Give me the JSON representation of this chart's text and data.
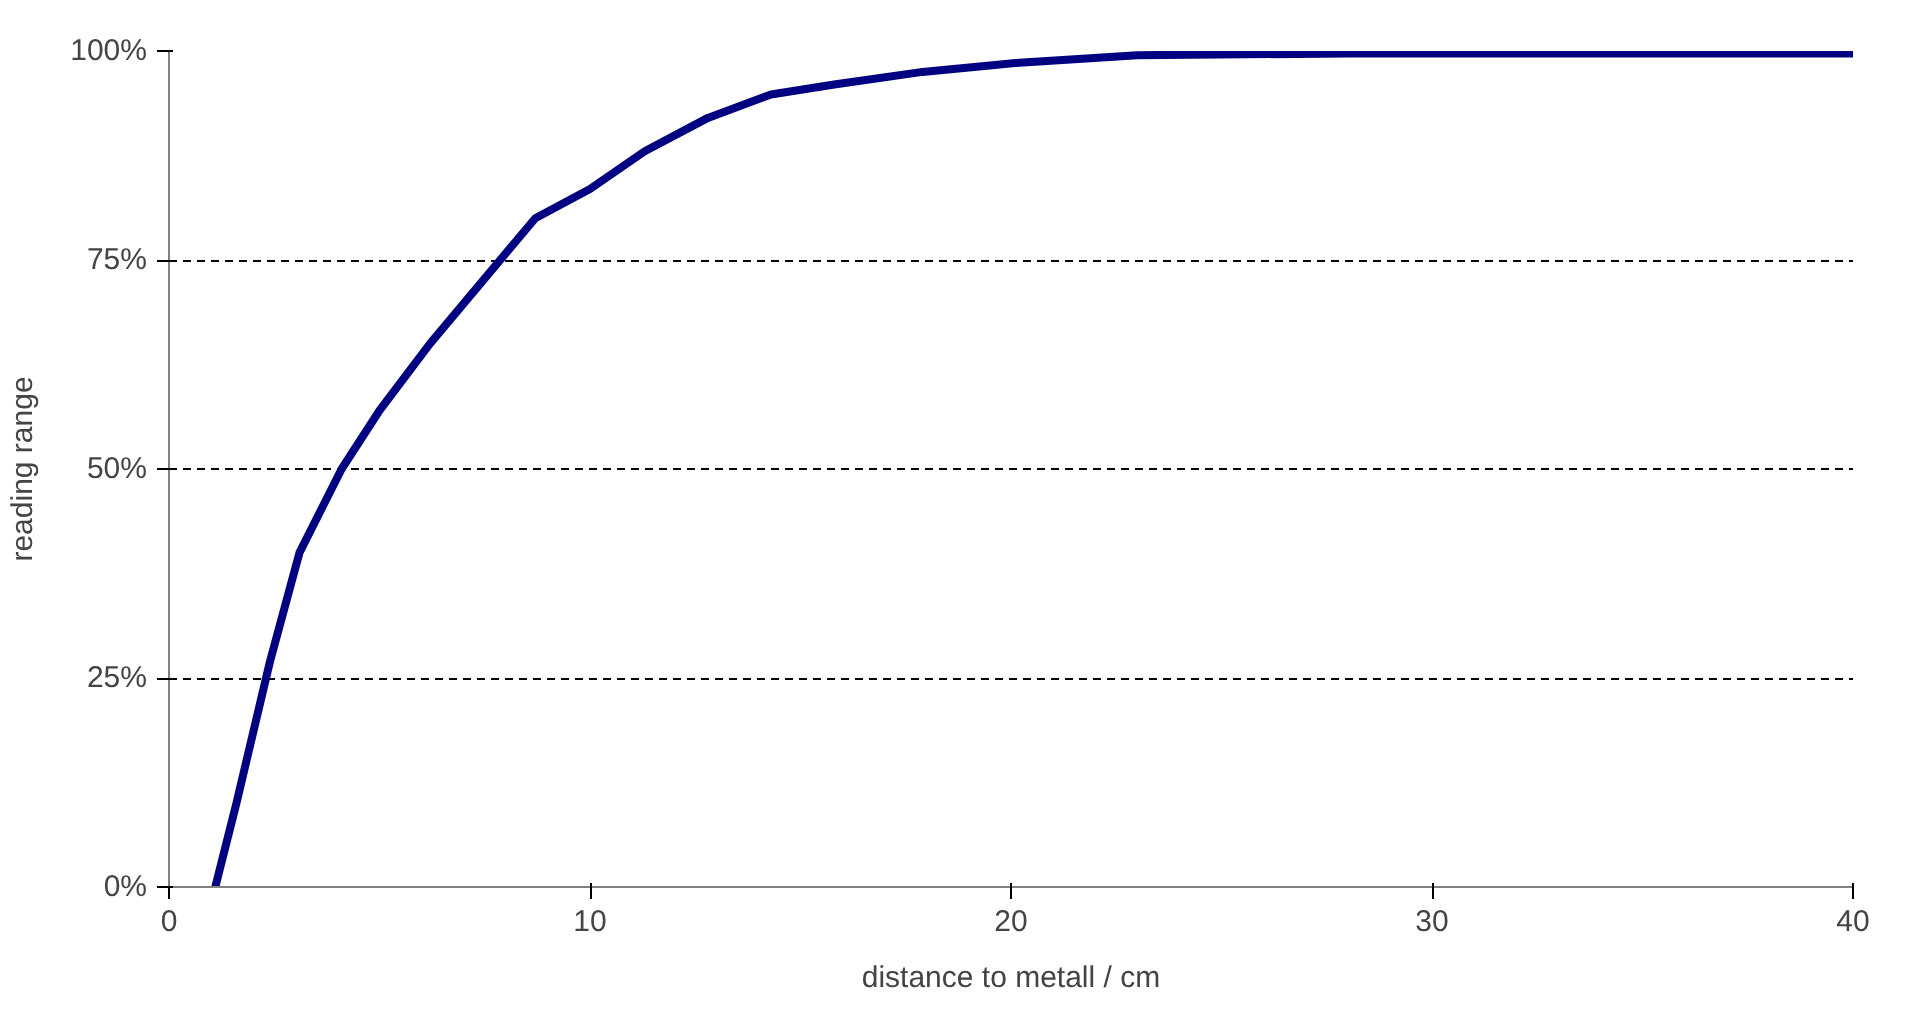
{
  "chart_data": {
    "type": "line",
    "xlabel": "distance to metall / cm",
    "ylabel": "reading range",
    "series": [
      {
        "color": "#000080",
        "x": [
          1.1,
          1.6,
          2.4,
          3.1,
          4.1,
          5,
          6.2,
          7.7,
          8.7,
          10,
          11.3,
          12.8,
          14.3,
          15.8,
          17.9,
          20.2,
          23,
          28,
          40
        ],
        "values": [
          0,
          10,
          27,
          40,
          50,
          57,
          65,
          74,
          80,
          83.5,
          88,
          92,
          94.8,
          96,
          97.5,
          98.6,
          99.5,
          99.7,
          99.7
        ]
      }
    ],
    "xlim": [
      0,
      40
    ],
    "xticks": [
      0,
      10,
      20,
      30,
      40
    ],
    "ylim": [
      0,
      100
    ],
    "yticks": [
      {
        "value": 0,
        "label": "0%"
      },
      {
        "value": 25,
        "label": "25%"
      },
      {
        "value": 50,
        "label": "50%"
      },
      {
        "value": 75,
        "label": "75%"
      },
      {
        "value": 100,
        "label": "100%"
      }
    ],
    "grid": "y",
    "line_style": "solid",
    "marker": "none"
  }
}
